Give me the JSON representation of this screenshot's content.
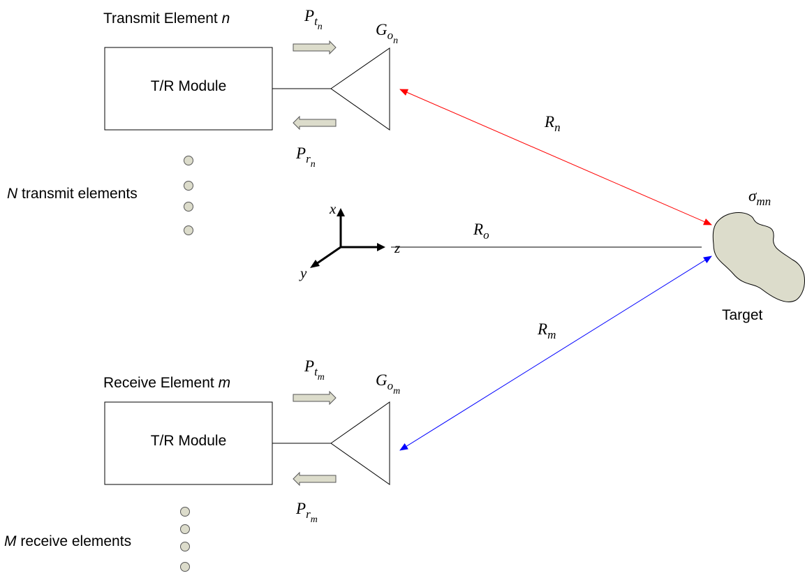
{
  "transmit": {
    "element_label": "Transmit Element ",
    "element_index": "n",
    "module_label": "T/R Module",
    "power_out": {
      "symbol": "P",
      "sub": "t",
      "subsub": "n"
    },
    "power_in": {
      "symbol": "P",
      "sub": "r",
      "subsub": "n"
    },
    "gain": {
      "symbol": "G",
      "sub": "o",
      "subsub": "n"
    },
    "count_symbol": "N",
    "count_label": " transmit elements"
  },
  "receive": {
    "element_label": "Receive Element ",
    "element_index": "m",
    "module_label": "T/R Module",
    "power_out": {
      "symbol": "P",
      "sub": "t",
      "subsub": "m"
    },
    "power_in": {
      "symbol": "P",
      "sub": "r",
      "subsub": "m"
    },
    "gain": {
      "symbol": "G",
      "sub": "o",
      "subsub": "m"
    },
    "count_symbol": "M",
    "count_label": " receive elements"
  },
  "ranges": {
    "transmit": {
      "symbol": "R",
      "sub": "n"
    },
    "reference": {
      "symbol": "R",
      "sub": "o"
    },
    "receive": {
      "symbol": "R",
      "sub": "m"
    }
  },
  "axes": {
    "x": "x",
    "y": "y",
    "z": "z"
  },
  "target": {
    "label": "Target",
    "rcs": {
      "symbol": "σ",
      "sub": "mn"
    }
  },
  "colors": {
    "transmit_path": "#ff0000",
    "receive_path": "#0000ff",
    "arrow_fill": "#dcdccb",
    "target_fill": "#dcdccb",
    "dot_fill": "#dcdccb"
  }
}
